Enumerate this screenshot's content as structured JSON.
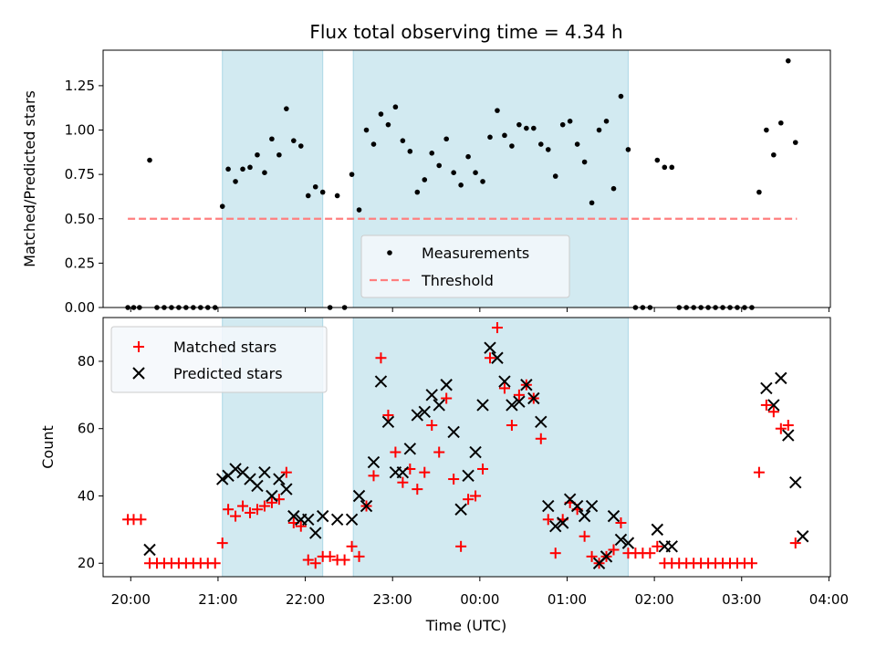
{
  "title": "Flux total observing time = 4.34 h",
  "colors": {
    "shade": "#add8e6",
    "measurement": "#000000",
    "threshold": "#ff7f7f",
    "matched": "#ff0000",
    "predicted": "#000000"
  },
  "chart_data": [
    {
      "type": "scatter",
      "panel": "top",
      "ylabel": "Matched/Predicted stars",
      "ylim": [
        0,
        1.45
      ],
      "y_ticks": [
        "0.00",
        "0.25",
        "0.50",
        "0.75",
        "1.00",
        "1.25"
      ],
      "legend": {
        "placement": "lower-center",
        "measurements_label": "Measurements",
        "threshold_label": "Threshold"
      },
      "threshold": {
        "value": 0.5,
        "x_range": [
          "19:58",
          "03:38"
        ]
      },
      "shaded_intervals": [
        [
          "21:03",
          "22:12"
        ],
        [
          "22:33",
          "01:42"
        ]
      ],
      "series": [
        {
          "name": "Measurements",
          "x": [
            "19:58",
            "20:02",
            "20:06",
            "20:13",
            "20:18",
            "20:23",
            "20:28",
            "20:33",
            "20:38",
            "20:43",
            "20:48",
            "20:53",
            "20:58",
            "21:03",
            "21:07",
            "21:12",
            "21:17",
            "21:22",
            "21:27",
            "21:32",
            "21:37",
            "21:42",
            "21:47",
            "21:52",
            "21:57",
            "22:02",
            "22:07",
            "22:12",
            "22:17",
            "22:22",
            "22:27",
            "22:32",
            "22:37",
            "22:42",
            "22:47",
            "22:52",
            "22:57",
            "23:02",
            "23:07",
            "23:12",
            "23:17",
            "23:22",
            "23:27",
            "23:32",
            "23:37",
            "23:42",
            "23:47",
            "23:52",
            "23:57",
            "00:02",
            "00:07",
            "00:12",
            "00:17",
            "00:22",
            "00:27",
            "00:32",
            "00:37",
            "00:42",
            "00:47",
            "00:52",
            "00:57",
            "01:02",
            "01:07",
            "01:12",
            "01:17",
            "01:22",
            "01:27",
            "01:32",
            "01:37",
            "01:42",
            "01:47",
            "01:52",
            "01:57",
            "02:02",
            "02:07",
            "02:12",
            "02:17",
            "02:22",
            "02:27",
            "02:32",
            "02:37",
            "02:42",
            "02:47",
            "02:52",
            "02:57",
            "03:02",
            "03:07",
            "03:12",
            "03:17",
            "03:22",
            "03:27",
            "03:32",
            "03:37"
          ],
          "y": [
            0,
            0,
            0,
            0.83,
            0,
            0,
            0,
            0,
            0,
            0,
            0,
            0,
            0,
            0.57,
            0.78,
            0.71,
            0.78,
            0.79,
            0.86,
            0.76,
            0.95,
            0.86,
            1.12,
            0.94,
            0.91,
            0.63,
            0.68,
            0.65,
            0,
            0.63,
            0,
            0.75,
            0.55,
            1.0,
            0.92,
            1.09,
            1.03,
            1.13,
            0.94,
            0.88,
            0.65,
            0.72,
            0.87,
            0.8,
            0.95,
            0.76,
            0.69,
            0.85,
            0.76,
            0.71,
            0.96,
            1.11,
            0.97,
            0.91,
            1.03,
            1.01,
            1.01,
            0.92,
            0.89,
            0.74,
            1.03,
            1.05,
            0.92,
            0.82,
            0.59,
            1.0,
            1.05,
            0.67,
            1.19,
            0.89,
            0,
            0,
            0,
            0.83,
            0.79,
            0.79,
            0,
            0,
            0,
            0,
            0,
            0,
            0,
            0,
            0,
            0,
            0,
            0.65,
            1.0,
            0.86,
            1.04,
            1.39,
            0.93
          ]
        }
      ]
    },
    {
      "type": "scatter",
      "panel": "bottom",
      "xlabel": "Time (UTC)",
      "ylabel": "Count",
      "ylim": [
        16,
        93
      ],
      "y_ticks": [
        "20",
        "40",
        "60",
        "80"
      ],
      "x_ticks": [
        "20:00",
        "21:00",
        "22:00",
        "23:00",
        "00:00",
        "01:00",
        "02:00",
        "03:00",
        "04:00"
      ],
      "xlim": [
        "19:41",
        "04:01"
      ],
      "legend": {
        "placement": "upper-left",
        "matched_label": "Matched stars",
        "predicted_label": "Predicted stars"
      },
      "shaded_intervals": [
        [
          "21:03",
          "22:12"
        ],
        [
          "22:33",
          "01:42"
        ]
      ],
      "series": [
        {
          "name": "Matched stars",
          "marker": "+",
          "x": [
            "19:58",
            "20:02",
            "20:07",
            "20:13",
            "20:18",
            "20:23",
            "20:28",
            "20:33",
            "20:38",
            "20:43",
            "20:48",
            "20:53",
            "20:58",
            "21:03",
            "21:07",
            "21:12",
            "21:17",
            "21:22",
            "21:27",
            "21:32",
            "21:37",
            "21:42",
            "21:47",
            "21:52",
            "21:57",
            "22:02",
            "22:07",
            "22:12",
            "22:17",
            "22:22",
            "22:27",
            "22:32",
            "22:37",
            "22:42",
            "22:47",
            "22:52",
            "22:57",
            "23:02",
            "23:07",
            "23:12",
            "23:17",
            "23:22",
            "23:27",
            "23:32",
            "23:37",
            "23:42",
            "23:47",
            "23:52",
            "23:57",
            "00:02",
            "00:07",
            "00:12",
            "00:17",
            "00:22",
            "00:27",
            "00:32",
            "00:37",
            "00:42",
            "00:47",
            "00:52",
            "00:57",
            "01:02",
            "01:07",
            "01:12",
            "01:17",
            "01:22",
            "01:27",
            "01:32",
            "01:37",
            "01:42",
            "01:47",
            "01:52",
            "01:57",
            "02:02",
            "02:07",
            "02:12",
            "02:17",
            "02:22",
            "02:27",
            "02:32",
            "02:37",
            "02:42",
            "02:47",
            "02:52",
            "02:57",
            "03:02",
            "03:07",
            "03:12",
            "03:17",
            "03:22",
            "03:27",
            "03:32",
            "03:37"
          ],
          "y": [
            33,
            33,
            33,
            20,
            20,
            20,
            20,
            20,
            20,
            20,
            20,
            20,
            20,
            26,
            36,
            34,
            37,
            35,
            36,
            37,
            38,
            39,
            47,
            32,
            31,
            21,
            20,
            22,
            22,
            21,
            21,
            25,
            22,
            37,
            46,
            81,
            64,
            53,
            44,
            48,
            42,
            47,
            61,
            53,
            69,
            45,
            25,
            39,
            40,
            48,
            81,
            90,
            72,
            61,
            70,
            73,
            69,
            57,
            33,
            23,
            33,
            38,
            36,
            28,
            22,
            20,
            22,
            24,
            32,
            23,
            23,
            23,
            23,
            25,
            20,
            20,
            20,
            20,
            20,
            20,
            20,
            20,
            20,
            20,
            20,
            20,
            20,
            47,
            67,
            65,
            60,
            61,
            26
          ]
        },
        {
          "name": "Predicted stars",
          "marker": "x",
          "x": [
            "20:13",
            "21:03",
            "21:07",
            "21:12",
            "21:17",
            "21:22",
            "21:27",
            "21:32",
            "21:37",
            "21:42",
            "21:47",
            "21:52",
            "21:57",
            "22:02",
            "22:07",
            "22:12",
            "22:22",
            "22:32",
            "22:37",
            "22:42",
            "22:47",
            "22:52",
            "22:57",
            "23:02",
            "23:07",
            "23:12",
            "23:17",
            "23:22",
            "23:27",
            "23:32",
            "23:37",
            "23:42",
            "23:47",
            "23:52",
            "23:57",
            "00:02",
            "00:07",
            "00:12",
            "00:17",
            "00:22",
            "00:27",
            "00:32",
            "00:37",
            "00:42",
            "00:47",
            "00:52",
            "00:57",
            "01:02",
            "01:07",
            "01:12",
            "01:17",
            "01:22",
            "01:27",
            "01:32",
            "01:37",
            "01:42",
            "02:02",
            "02:07",
            "02:12",
            "03:17",
            "03:22",
            "03:27",
            "03:32",
            "03:37",
            "03:42"
          ],
          "y": [
            24,
            45,
            46,
            48,
            47,
            45,
            43,
            47,
            40,
            45,
            42,
            34,
            33,
            33,
            29,
            34,
            33,
            33,
            40,
            37,
            50,
            74,
            62,
            47,
            47,
            54,
            64,
            65,
            70,
            67,
            73,
            59,
            36,
            46,
            53,
            67,
            84,
            81,
            74,
            67,
            68,
            73,
            69,
            62,
            37,
            31,
            32,
            39,
            37,
            34,
            37,
            20,
            22,
            34,
            27,
            26,
            30,
            25,
            25,
            72,
            67,
            75,
            58,
            44,
            28
          ]
        }
      ]
    }
  ]
}
